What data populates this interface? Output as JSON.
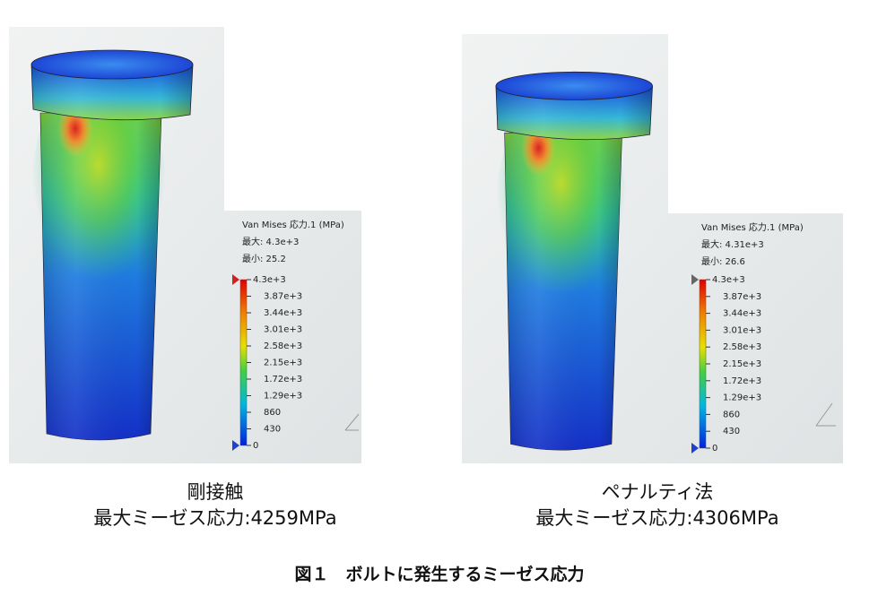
{
  "panels": [
    {
      "legend": {
        "title": "Van Mises 応力.1 (MPa)",
        "max": "最大: 4.3e+3",
        "min": "最小: 25.2",
        "ticks": [
          "4.3e+3",
          "3.87e+3",
          "3.44e+3",
          "3.01e+3",
          "2.58e+3",
          "2.15e+3",
          "1.72e+3",
          "1.29e+3",
          "860",
          "430",
          "0"
        ]
      },
      "caption": {
        "name": "剛接触",
        "max_stress": "最大ミーゼス応力:4259MPa"
      }
    },
    {
      "legend": {
        "title": "Van Mises 応力.1 (MPa)",
        "max": "最大: 4.31e+3",
        "min": "最小: 26.6",
        "ticks": [
          "4.3e+3",
          "3.87e+3",
          "3.44e+3",
          "3.01e+3",
          "2.58e+3",
          "2.15e+3",
          "1.72e+3",
          "1.29e+3",
          "860",
          "430",
          "0"
        ]
      },
      "caption": {
        "name": "ペナルティ法",
        "max_stress": "最大ミーゼス応力:4306MPa"
      }
    }
  ],
  "figure_caption": "図１　ボルトに発生するミーゼス応力"
}
